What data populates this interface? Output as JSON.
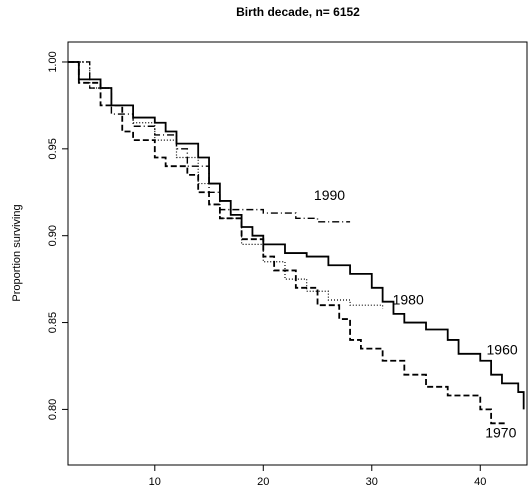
{
  "chart_data": {
    "type": "step",
    "title": "Birth decade, n= 6152",
    "ylabel": "Proportion surviving",
    "xlim": [
      2,
      44.4
    ],
    "ylim": [
      0.768,
      1.0115
    ],
    "xticks": [
      10,
      20,
      30,
      40
    ],
    "yticks": [
      {
        "value": 0.8,
        "label": "0.80"
      },
      {
        "value": 0.85,
        "label": "0.85"
      },
      {
        "value": 0.9,
        "label": "0.90"
      },
      {
        "value": 0.95,
        "label": "0.95"
      },
      {
        "value": 1.0,
        "label": "1.00"
      }
    ],
    "series": [
      {
        "name": "1960",
        "color": "#000000",
        "dash": "solid",
        "x": [
          2,
          3,
          5,
          6,
          8,
          10,
          11,
          12,
          14,
          15,
          16,
          17,
          18,
          19,
          20,
          22,
          24,
          26,
          28,
          30,
          31,
          32,
          33,
          35,
          37,
          38,
          40,
          41,
          42,
          43.5,
          44
        ],
        "values": [
          1.0,
          0.99,
          0.985,
          0.975,
          0.968,
          0.965,
          0.96,
          0.953,
          0.945,
          0.93,
          0.92,
          0.912,
          0.905,
          0.9,
          0.895,
          0.89,
          0.888,
          0.883,
          0.878,
          0.87,
          0.862,
          0.855,
          0.85,
          0.846,
          0.84,
          0.832,
          0.828,
          0.82,
          0.815,
          0.81,
          0.8
        ]
      },
      {
        "name": "1970",
        "color": "#000000",
        "dash": "dashed",
        "x": [
          2,
          3,
          5,
          7,
          8,
          10,
          11,
          13,
          14,
          15,
          16,
          18,
          20,
          21,
          23,
          25,
          27,
          28,
          29,
          31,
          33,
          35,
          37,
          40,
          41,
          42.5
        ],
        "values": [
          1.0,
          0.988,
          0.975,
          0.96,
          0.955,
          0.945,
          0.94,
          0.935,
          0.925,
          0.918,
          0.91,
          0.898,
          0.888,
          0.88,
          0.87,
          0.86,
          0.852,
          0.84,
          0.835,
          0.828,
          0.82,
          0.813,
          0.808,
          0.8,
          0.792,
          0.792
        ]
      },
      {
        "name": "1980",
        "color": "#000000",
        "dash": "dotted",
        "x": [
          2,
          4,
          6,
          8,
          10,
          12,
          14,
          16,
          18,
          20,
          22,
          24,
          26,
          28,
          31
        ],
        "values": [
          1.0,
          0.985,
          0.975,
          0.965,
          0.955,
          0.945,
          0.93,
          0.91,
          0.895,
          0.885,
          0.875,
          0.868,
          0.863,
          0.86,
          0.858
        ]
      },
      {
        "name": "1990",
        "color": "#000000",
        "dash": "dotdash",
        "x": [
          2,
          4,
          6,
          8,
          10,
          12,
          13,
          15,
          16,
          20,
          23,
          25,
          28
        ],
        "values": [
          1.0,
          0.985,
          0.97,
          0.963,
          0.958,
          0.95,
          0.94,
          0.925,
          0.915,
          0.913,
          0.91,
          0.908,
          0.908
        ]
      }
    ]
  }
}
